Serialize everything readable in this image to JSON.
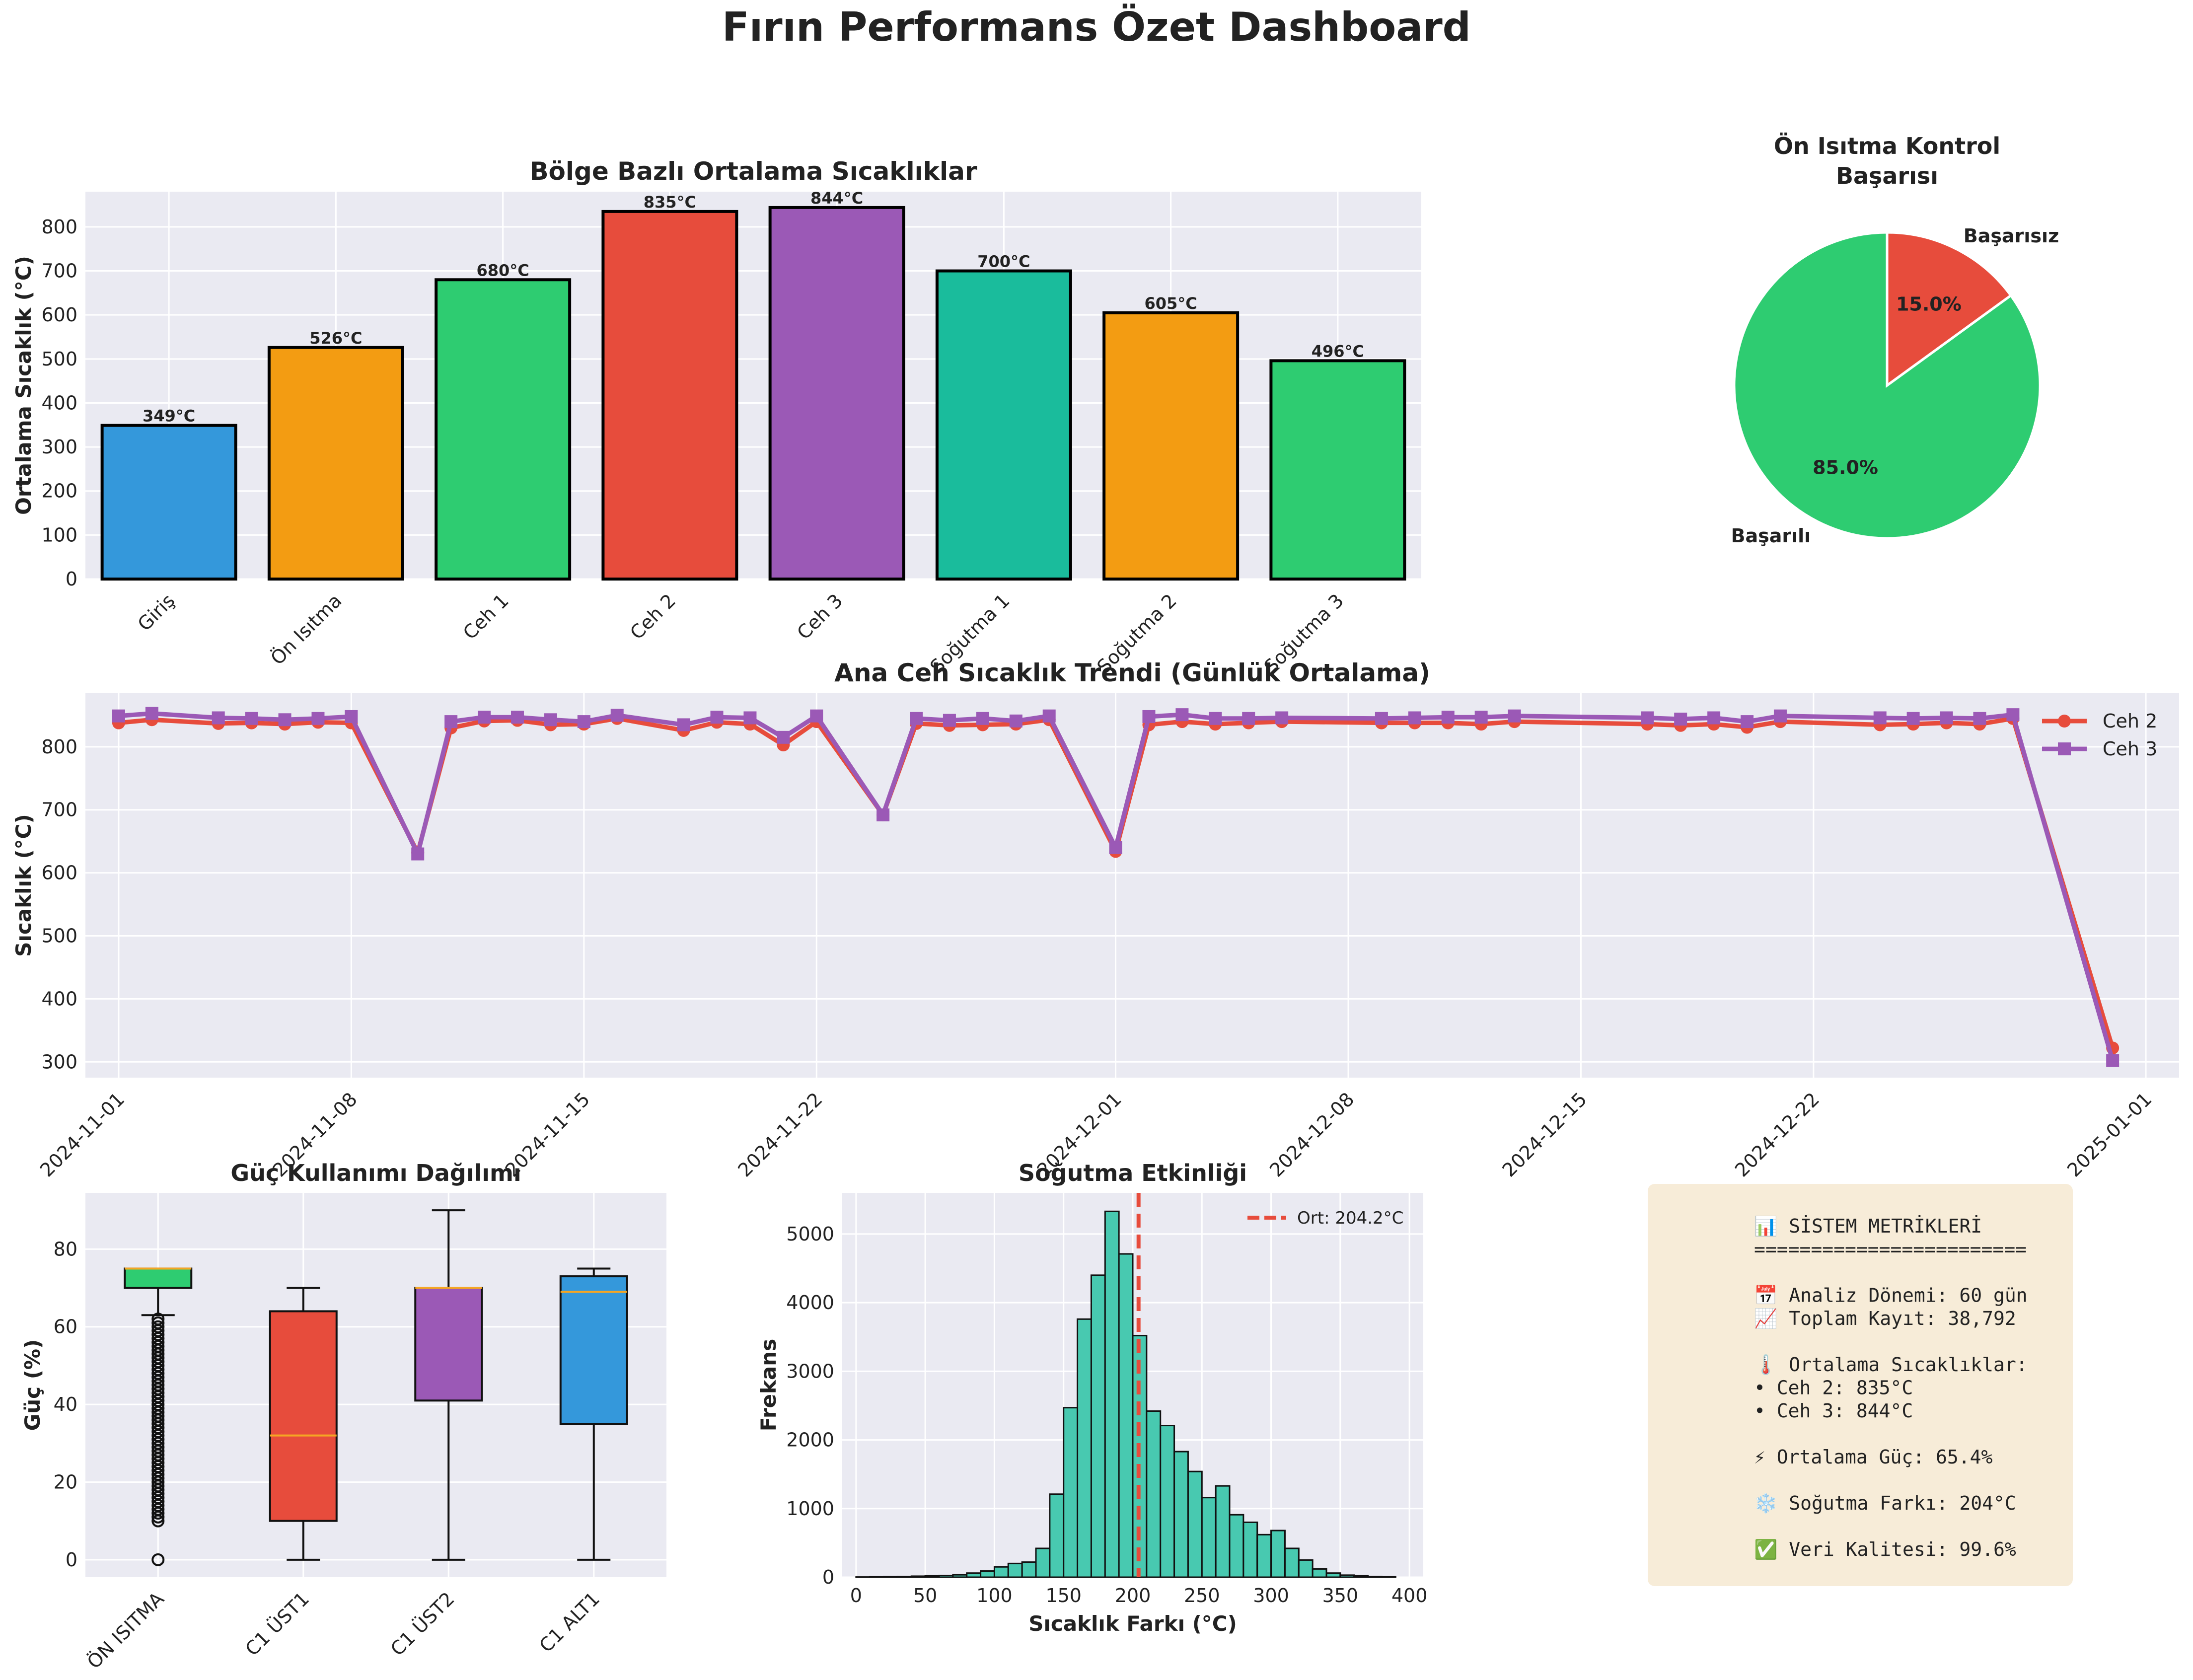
{
  "page_title": "Fırın Performans Özet Dashboard",
  "colors": {
    "blue": "#3498db",
    "orange": "#f39c12",
    "green": "#2ecc71",
    "red": "#e74c3c",
    "purple": "#9b59b6",
    "teal": "#1abc9c",
    "panel_bg": "#eaeaf2",
    "grid": "#ffffff",
    "metrics_bg": "#f7ecd8"
  },
  "chart_data": [
    {
      "id": "zone_temps",
      "type": "bar",
      "title": "Bölge Bazlı Ortalama Sıcaklıklar",
      "xlabel": "",
      "ylabel": "Ortalama Sıcaklık (°C)",
      "ylim": [
        0,
        880
      ],
      "yticks": [
        0,
        100,
        200,
        300,
        400,
        500,
        600,
        700,
        800
      ],
      "categories": [
        "Giriş",
        "Ön Isıtma",
        "Ceh 1",
        "Ceh 2",
        "Ceh 3",
        "Soğutma 1",
        "Soğutma 2",
        "Soğutma 3"
      ],
      "values": [
        349,
        526,
        680,
        835,
        844,
        700,
        605,
        496
      ],
      "labels": [
        "349°C",
        "526°C",
        "680°C",
        "835°C",
        "844°C",
        "700°C",
        "605°C",
        "496°C"
      ],
      "colors": [
        "#3498db",
        "#f39c12",
        "#2ecc71",
        "#e74c3c",
        "#9b59b6",
        "#1abc9c",
        "#f39c12",
        "#2ecc71"
      ],
      "grid": true
    },
    {
      "id": "preheat_pie",
      "type": "pie",
      "title": "Ön Isıtma Kontrol\nBaşarısı",
      "slices": [
        {
          "label": "Başarılı",
          "value": 85.0,
          "pct_label": "85.0%",
          "color": "#2ecc71"
        },
        {
          "label": "Başarısız",
          "value": 15.0,
          "pct_label": "15.0%",
          "color": "#e74c3c"
        }
      ]
    },
    {
      "id": "daily_trend",
      "type": "line",
      "title": "Ana Ceh Sıcaklık Trendi (Günlük Ortalama)",
      "xlabel": "",
      "ylabel": "Sıcaklık (°C)",
      "ylim": [
        275,
        885
      ],
      "yticks": [
        300,
        400,
        500,
        600,
        700,
        800
      ],
      "xlim": [
        "2024-10-31",
        "2025-01-02"
      ],
      "xticks": [
        "2024-11-01",
        "2024-11-08",
        "2024-11-15",
        "2024-11-22",
        "2024-12-01",
        "2024-12-08",
        "2024-12-15",
        "2024-12-22",
        "2025-01-01"
      ],
      "legend": "top-right",
      "grid": true,
      "x": [
        "2024-11-01",
        "2024-11-02",
        "2024-11-04",
        "2024-11-05",
        "2024-11-06",
        "2024-11-07",
        "2024-11-08",
        "2024-11-10",
        "2024-11-11",
        "2024-11-12",
        "2024-11-13",
        "2024-11-14",
        "2024-11-15",
        "2024-11-16",
        "2024-11-18",
        "2024-11-19",
        "2024-11-20",
        "2024-11-21",
        "2024-11-22",
        "2024-11-24",
        "2024-11-25",
        "2024-11-26",
        "2024-11-27",
        "2024-11-28",
        "2024-11-29",
        "2024-12-01",
        "2024-12-02",
        "2024-12-03",
        "2024-12-04",
        "2024-12-05",
        "2024-12-06",
        "2024-12-09",
        "2024-12-10",
        "2024-12-11",
        "2024-12-12",
        "2024-12-13",
        "2024-12-17",
        "2024-12-18",
        "2024-12-19",
        "2024-12-20",
        "2024-12-21",
        "2024-12-24",
        "2024-12-25",
        "2024-12-26",
        "2024-12-27",
        "2024-12-28",
        "2024-12-31"
      ],
      "series": [
        {
          "name": "Ceh 2",
          "color": "#e74c3c",
          "marker": "circle",
          "values": [
            838,
            843,
            837,
            838,
            836,
            839,
            838,
            632,
            830,
            841,
            842,
            835,
            836,
            845,
            826,
            839,
            836,
            803,
            840,
            692,
            837,
            834,
            835,
            836,
            843,
            634,
            835,
            840,
            836,
            838,
            840,
            838,
            838,
            838,
            836,
            840,
            836,
            834,
            836,
            831,
            840,
            835,
            836,
            838,
            836,
            845,
            322
          ]
        },
        {
          "name": "Ceh 3",
          "color": "#9b59b6",
          "marker": "square",
          "values": [
            849,
            853,
            846,
            845,
            843,
            845,
            848,
            630,
            840,
            847,
            847,
            843,
            840,
            850,
            835,
            847,
            846,
            815,
            849,
            692,
            845,
            842,
            845,
            841,
            849,
            640,
            848,
            851,
            845,
            845,
            846,
            845,
            846,
            847,
            847,
            849,
            846,
            844,
            846,
            840,
            849,
            846,
            845,
            846,
            845,
            851,
            302
          ]
        }
      ]
    },
    {
      "id": "power_box",
      "type": "box",
      "title": "Güç Kullanımı Dağılımı",
      "xlabel": "",
      "ylabel": "Güç (%)",
      "ylim": [
        -4.5,
        94.5
      ],
      "yticks": [
        0,
        20,
        40,
        60,
        80
      ],
      "categories": [
        "ÖN ISITMA",
        "C1 ÜST1",
        "C1 ÜST2",
        "C1 ALT1"
      ],
      "colors": [
        "#2ecc71",
        "#e74c3c",
        "#9b59b6",
        "#3498db"
      ],
      "boxes": [
        {
          "whisker_low": 63,
          "q1": 70,
          "median": 75,
          "q3": 75,
          "whisker_high": 75,
          "outliers": [
            0,
            10,
            11,
            12,
            13,
            14,
            15,
            16,
            17,
            18,
            19,
            20,
            21,
            22,
            23,
            24,
            25,
            26,
            27,
            28,
            29,
            30,
            31,
            32,
            33,
            34,
            35,
            36,
            37,
            38,
            39,
            40,
            41,
            42,
            43,
            44,
            45,
            46,
            47,
            48,
            49,
            50,
            51,
            52,
            53,
            54,
            55,
            56,
            57,
            58,
            59,
            60,
            61,
            62
          ]
        },
        {
          "whisker_low": 0,
          "q1": 10,
          "median": 32,
          "q3": 64,
          "whisker_high": 70,
          "outliers": []
        },
        {
          "whisker_low": 0,
          "q1": 41,
          "median": 70,
          "q3": 70,
          "whisker_high": 90,
          "outliers": []
        },
        {
          "whisker_low": 0,
          "q1": 35,
          "median": 69,
          "q3": 73,
          "whisker_high": 75,
          "outliers": []
        }
      ],
      "grid": true
    },
    {
      "id": "cooling_hist",
      "type": "histogram",
      "title": "Soğutma Etkinliği",
      "xlabel": "Sıcaklık Farkı (°C)",
      "ylabel": "Frekans",
      "xlim": [
        -10,
        410
      ],
      "ylim": [
        0,
        5600
      ],
      "xticks": [
        0,
        50,
        100,
        150,
        200,
        250,
        300,
        350,
        400
      ],
      "yticks": [
        0,
        1000,
        2000,
        3000,
        4000,
        5000
      ],
      "bin_start": 0,
      "bin_width": 10,
      "counts": [
        3,
        5,
        8,
        10,
        15,
        20,
        25,
        35,
        60,
        90,
        150,
        200,
        220,
        420,
        1210,
        2470,
        3760,
        4400,
        5330,
        4710,
        3520,
        2420,
        2210,
        1830,
        1540,
        1160,
        1330,
        910,
        800,
        620,
        680,
        420,
        250,
        120,
        60,
        30,
        20,
        10,
        5
      ],
      "bar_color": "#48c9b0",
      "mean_line": {
        "value": 204.2,
        "label": "Ort: 204.2°C",
        "color": "#e74c3c"
      },
      "legend": "top-right",
      "grid": true
    }
  ],
  "metrics_panel": {
    "lines": [
      "📊 SİSTEM METRİKLERİ",
      "========================",
      "",
      "📅 Analiz Dönemi: 60 gün",
      "📈 Toplam Kayıt: 38,792",
      "",
      "🌡️ Ortalama Sıcaklıklar:",
      "• Ceh 2: 835°C",
      "• Ceh 3: 844°C",
      "",
      "⚡ Ortalama Güç: 65.4%",
      "",
      "❄️ Soğutma Farkı: 204°C",
      "",
      "✅ Veri Kalitesi: 99.6%"
    ]
  }
}
